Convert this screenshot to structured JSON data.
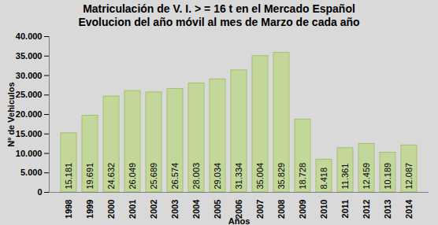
{
  "chart_data": {
    "type": "bar",
    "title": "Matriculación de V. I. > = 16 t en el Mercado Español",
    "subtitle": "Evolucion del año móvil al mes de Marzo de cada año",
    "x_label": "Años",
    "y_label": "Nº de Vehiculos",
    "categories": [
      "1998",
      "1999",
      "2000",
      "2001",
      "2002",
      "2003",
      "2004",
      "2005",
      "2006",
      "2007",
      "2008",
      "2009",
      "2010",
      "2011",
      "2012",
      "2013",
      "2014"
    ],
    "values": [
      15181,
      19691,
      24632,
      26049,
      25689,
      26574,
      28003,
      29034,
      31334,
      35004,
      35829,
      18728,
      8418,
      11361,
      12459,
      10189,
      12087
    ],
    "value_labels": [
      "15.181",
      "19.691",
      "24.632",
      "26.049",
      "25.689",
      "26.574",
      "28.003",
      "29.034",
      "31.334",
      "35.004",
      "35.829",
      "18.728",
      "8.418",
      "11.361",
      "12.459",
      "10.189",
      "12.087"
    ],
    "color": "#c4d79b",
    "ylim": [
      0,
      40000
    ],
    "yticks": [
      0,
      {
        "value": 5000,
        "label": "5.000"
      },
      {
        "value": 10000,
        "label": "10.000"
      },
      {
        "value": 15000,
        "label": "15.000"
      },
      {
        "value": 20000,
        "label": "20.000"
      },
      {
        "value": 25000,
        "label": "25.000"
      },
      {
        "value": 30000,
        "label": "30.000"
      },
      {
        "value": 35000,
        "label": "35.000"
      },
      {
        "value": 40000,
        "label": "40.000"
      }
    ],
    "grid": false,
    "data_labels": true
  }
}
